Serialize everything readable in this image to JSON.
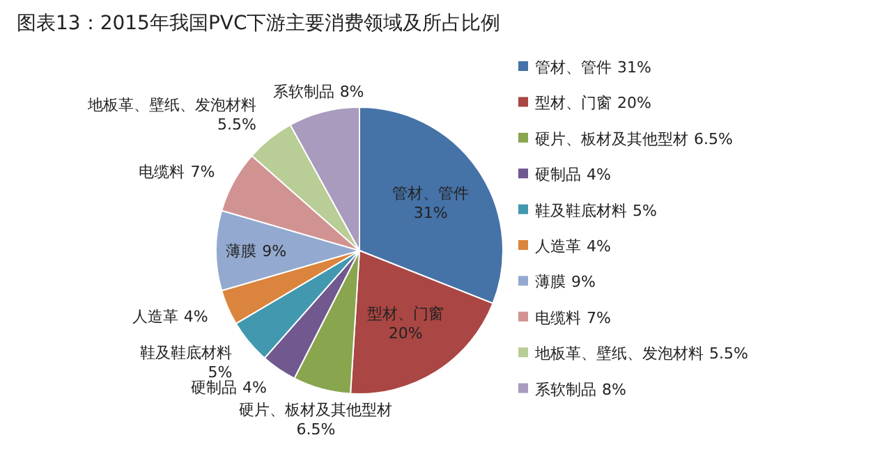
{
  "chart_data": {
    "type": "pie",
    "title": "图表13：2015年我国PVC下游主要消费领域及所占比例",
    "categories": [
      "管材、管件",
      "型材、门窗",
      "硬片、板材及其他型材",
      "硬制品",
      "鞋及鞋底材料",
      "人造革",
      "薄膜",
      "电缆料",
      "地板革、壁纸、发泡材料",
      "系软制品"
    ],
    "values": [
      31,
      20,
      6.5,
      4,
      5,
      4,
      9,
      7,
      5.5,
      8
    ],
    "value_labels": [
      "31%",
      "20%",
      "6.5%",
      "4%",
      "5%",
      "4%",
      "9%",
      "7%",
      "5.5%",
      "8%"
    ],
    "colors": [
      "#4572a7",
      "#aa4643",
      "#89a54e",
      "#71588f",
      "#4198af",
      "#db843d",
      "#93a9cf",
      "#d19392",
      "#b9cd96",
      "#a99bbd"
    ],
    "legend": "right"
  }
}
